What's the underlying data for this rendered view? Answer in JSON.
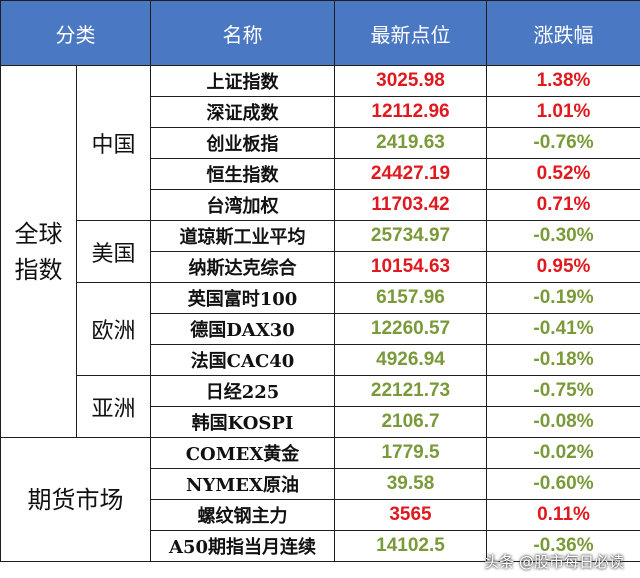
{
  "headers": [
    "分类",
    "名称",
    "最新点位",
    "涨跌幅"
  ],
  "groups": {
    "global": "全球\n指数",
    "futures": "期货市场"
  },
  "regions": {
    "china": "中国",
    "usa": "美国",
    "europe": "欧洲",
    "asia": "亚洲"
  },
  "rows": [
    {
      "name": "上证指数",
      "value": "3025.98",
      "change": "1.38%",
      "dir": "up"
    },
    {
      "name": "深证成数",
      "value": "12112.96",
      "change": "1.01%",
      "dir": "up"
    },
    {
      "name": "创业板指",
      "value": "2419.63",
      "change": "-0.76%",
      "dir": "down"
    },
    {
      "name": "恒生指数",
      "value": "24427.19",
      "change": "0.52%",
      "dir": "up"
    },
    {
      "name": "台湾加权",
      "value": "11703.42",
      "change": "0.71%",
      "dir": "up"
    },
    {
      "name": "道琼斯工业平均",
      "value": "25734.97",
      "change": "-0.30%",
      "dir": "down"
    },
    {
      "name": "纳斯达克综合",
      "value": "10154.63",
      "change": "0.95%",
      "dir": "up"
    },
    {
      "name": "英国富时100",
      "value": "6157.96",
      "change": "-0.19%",
      "dir": "down"
    },
    {
      "name": "德国DAX30",
      "value": "12260.57",
      "change": "-0.41%",
      "dir": "down"
    },
    {
      "name": "法国CAC40",
      "value": "4926.94",
      "change": "-0.18%",
      "dir": "down"
    },
    {
      "name": "日经225",
      "value": "22121.73",
      "change": "-0.75%",
      "dir": "down"
    },
    {
      "name": "韩国KOSPI",
      "value": "2106.7",
      "change": "-0.08%",
      "dir": "down"
    },
    {
      "name": "COMEX黄金",
      "value": "1779.5",
      "change": "-0.02%",
      "dir": "down"
    },
    {
      "name": "NYMEX原油",
      "value": "39.58",
      "change": "-0.60%",
      "dir": "down"
    },
    {
      "name": "螺纹钢主力",
      "value": "3565",
      "change": "0.11%",
      "dir": "up"
    },
    {
      "name": "A50期指当月连续",
      "value": "14102.5",
      "change": "-0.36%",
      "dir": "down"
    }
  ],
  "colors": {
    "header_bg": "#4a78c2",
    "up": "#e0191f",
    "down": "#7a9a3a"
  },
  "watermark": "头条 @股市每日必读"
}
